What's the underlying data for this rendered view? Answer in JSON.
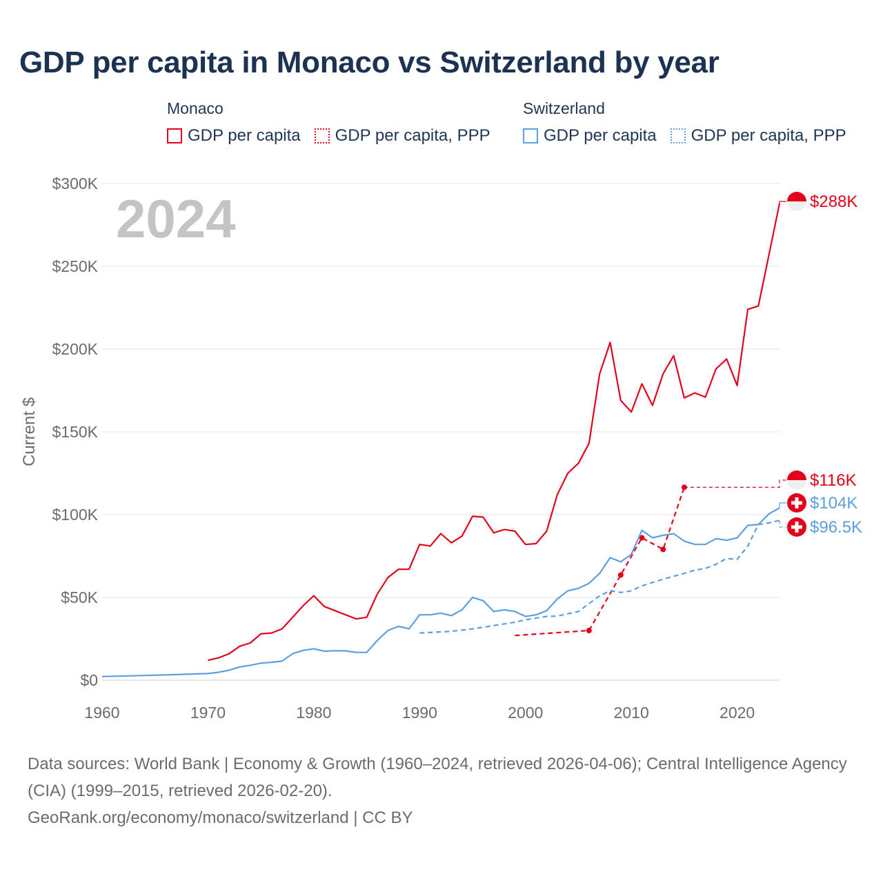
{
  "title": "GDP per capita in Monaco vs Switzerland by year",
  "legend": {
    "groups": [
      {
        "name": "Monaco",
        "items": [
          {
            "label": "GDP per capita",
            "color": "#e3001b",
            "style": "solid"
          },
          {
            "label": "GDP per capita, PPP",
            "color": "#e3001b",
            "style": "dotted"
          }
        ]
      },
      {
        "name": "Switzerland",
        "items": [
          {
            "label": "GDP per capita",
            "color": "#5b9fe0",
            "style": "solid"
          },
          {
            "label": "GDP per capita, PPP",
            "color": "#5b9fe0",
            "style": "dotted"
          }
        ]
      }
    ]
  },
  "year_watermark": "2024",
  "chart_data": {
    "type": "line",
    "ylabel": "Current $",
    "xlim": [
      1960,
      2024
    ],
    "ylim": [
      0,
      300000
    ],
    "x_ticks": [
      1960,
      1970,
      1980,
      1990,
      2000,
      2010,
      2020
    ],
    "y_ticks": [
      {
        "value": 0,
        "label": "$0"
      },
      {
        "value": 50000,
        "label": "$50K"
      },
      {
        "value": 100000,
        "label": "$100K"
      },
      {
        "value": 150000,
        "label": "$150K"
      },
      {
        "value": 200000,
        "label": "$200K"
      },
      {
        "value": 250000,
        "label": "$250K"
      },
      {
        "value": 300000,
        "label": "$300K"
      }
    ],
    "series": [
      {
        "name": "Monaco GDP per capita",
        "color": "#e3001b",
        "dash": "solid",
        "end_label": "$288K",
        "flag": "monaco",
        "points": [
          [
            1970,
            12000
          ],
          [
            1971,
            13500
          ],
          [
            1972,
            16000
          ],
          [
            1973,
            20500
          ],
          [
            1974,
            22500
          ],
          [
            1975,
            28000
          ],
          [
            1976,
            28500
          ],
          [
            1977,
            31000
          ],
          [
            1978,
            38000
          ],
          [
            1979,
            45000
          ],
          [
            1980,
            51000
          ],
          [
            1981,
            44500
          ],
          [
            1982,
            42000
          ],
          [
            1983,
            39500
          ],
          [
            1984,
            37000
          ],
          [
            1985,
            38000
          ],
          [
            1986,
            52000
          ],
          [
            1987,
            62000
          ],
          [
            1988,
            67000
          ],
          [
            1989,
            67000
          ],
          [
            1990,
            82000
          ],
          [
            1991,
            81000
          ],
          [
            1992,
            88500
          ],
          [
            1993,
            83000
          ],
          [
            1994,
            87000
          ],
          [
            1995,
            99000
          ],
          [
            1996,
            98500
          ],
          [
            1997,
            89000
          ],
          [
            1998,
            91000
          ],
          [
            1999,
            90000
          ],
          [
            2000,
            82000
          ],
          [
            2001,
            82500
          ],
          [
            2002,
            90000
          ],
          [
            2003,
            112000
          ],
          [
            2004,
            125000
          ],
          [
            2005,
            131000
          ],
          [
            2006,
            143000
          ],
          [
            2007,
            185000
          ],
          [
            2008,
            204000
          ],
          [
            2009,
            169000
          ],
          [
            2010,
            162000
          ],
          [
            2011,
            179000
          ],
          [
            2012,
            166000
          ],
          [
            2013,
            185000
          ],
          [
            2014,
            196000
          ],
          [
            2015,
            170500
          ],
          [
            2016,
            173500
          ],
          [
            2017,
            171000
          ],
          [
            2018,
            188000
          ],
          [
            2019,
            194000
          ],
          [
            2020,
            178000
          ],
          [
            2021,
            224000
          ],
          [
            2022,
            226000
          ],
          [
            2023,
            257000
          ],
          [
            2024,
            288000
          ]
        ]
      },
      {
        "name": "Monaco GDP per capita, PPP",
        "color": "#e3001b",
        "dash": "dashed",
        "end_label": "$116K",
        "flag": "monaco",
        "points": [
          [
            1999,
            27000
          ],
          [
            2006,
            30000
          ],
          [
            2009,
            63500
          ],
          [
            2011,
            86000
          ],
          [
            2013,
            79000
          ],
          [
            2015,
            116500
          ]
        ],
        "markers": [
          2006,
          2009,
          2011,
          2013,
          2015
        ]
      },
      {
        "name": "Switzerland GDP per capita",
        "color": "#5b9fe0",
        "dash": "solid",
        "end_label": "$104K",
        "flag": "switzerland",
        "points": [
          [
            1960,
            2200
          ],
          [
            1965,
            3000
          ],
          [
            1970,
            4000
          ],
          [
            1971,
            4800
          ],
          [
            1972,
            6000
          ],
          [
            1973,
            8000
          ],
          [
            1974,
            9000
          ],
          [
            1975,
            10300
          ],
          [
            1976,
            10800
          ],
          [
            1977,
            11500
          ],
          [
            1978,
            16000
          ],
          [
            1979,
            18000
          ],
          [
            1980,
            19000
          ],
          [
            1981,
            17500
          ],
          [
            1982,
            17800
          ],
          [
            1983,
            17700
          ],
          [
            1984,
            16800
          ],
          [
            1985,
            16800
          ],
          [
            1986,
            24000
          ],
          [
            1987,
            30000
          ],
          [
            1988,
            32500
          ],
          [
            1989,
            31000
          ],
          [
            1990,
            39500
          ],
          [
            1991,
            39500
          ],
          [
            1992,
            40500
          ],
          [
            1993,
            39000
          ],
          [
            1994,
            42500
          ],
          [
            1995,
            50000
          ],
          [
            1996,
            48000
          ],
          [
            1997,
            41500
          ],
          [
            1998,
            42500
          ],
          [
            1999,
            41500
          ],
          [
            2000,
            38500
          ],
          [
            2001,
            39500
          ],
          [
            2002,
            42000
          ],
          [
            2003,
            49000
          ],
          [
            2004,
            54000
          ],
          [
            2005,
            55500
          ],
          [
            2006,
            58500
          ],
          [
            2007,
            64500
          ],
          [
            2008,
            74000
          ],
          [
            2009,
            71500
          ],
          [
            2010,
            76000
          ],
          [
            2011,
            90500
          ],
          [
            2012,
            86000
          ],
          [
            2013,
            87500
          ],
          [
            2014,
            88500
          ],
          [
            2015,
            84000
          ],
          [
            2016,
            82000
          ],
          [
            2017,
            82000
          ],
          [
            2018,
            85500
          ],
          [
            2019,
            84500
          ],
          [
            2020,
            86000
          ],
          [
            2021,
            93500
          ],
          [
            2022,
            94000
          ],
          [
            2023,
            100500
          ],
          [
            2024,
            104000
          ]
        ]
      },
      {
        "name": "Switzerland GDP per capita, PPP",
        "color": "#5b9fe0",
        "dash": "dashed",
        "end_label": "$96.5K",
        "flag": "switzerland",
        "points": [
          [
            1990,
            28500
          ],
          [
            1993,
            29500
          ],
          [
            1995,
            31000
          ],
          [
            1997,
            33000
          ],
          [
            1999,
            35000
          ],
          [
            2000,
            36500
          ],
          [
            2002,
            38500
          ],
          [
            2003,
            38700
          ],
          [
            2005,
            41500
          ],
          [
            2007,
            51000
          ],
          [
            2008,
            54000
          ],
          [
            2009,
            53000
          ],
          [
            2010,
            54000
          ],
          [
            2011,
            57000
          ],
          [
            2013,
            61000
          ],
          [
            2015,
            64500
          ],
          [
            2016,
            66500
          ],
          [
            2017,
            67500
          ],
          [
            2018,
            70000
          ],
          [
            2019,
            73500
          ],
          [
            2020,
            73000
          ],
          [
            2021,
            81000
          ],
          [
            2022,
            94000
          ],
          [
            2023,
            95000
          ],
          [
            2024,
            96500
          ]
        ]
      }
    ]
  },
  "footer": {
    "sources": "Data sources: World Bank | Economy & Growth (1960–2024, retrieved 2026-04-06); Central Intelligence Agency (CIA) (1999–2015, retrieved 2026-02-20).",
    "credit": "GeoRank.org/economy/monaco/switzerland | CC BY"
  }
}
